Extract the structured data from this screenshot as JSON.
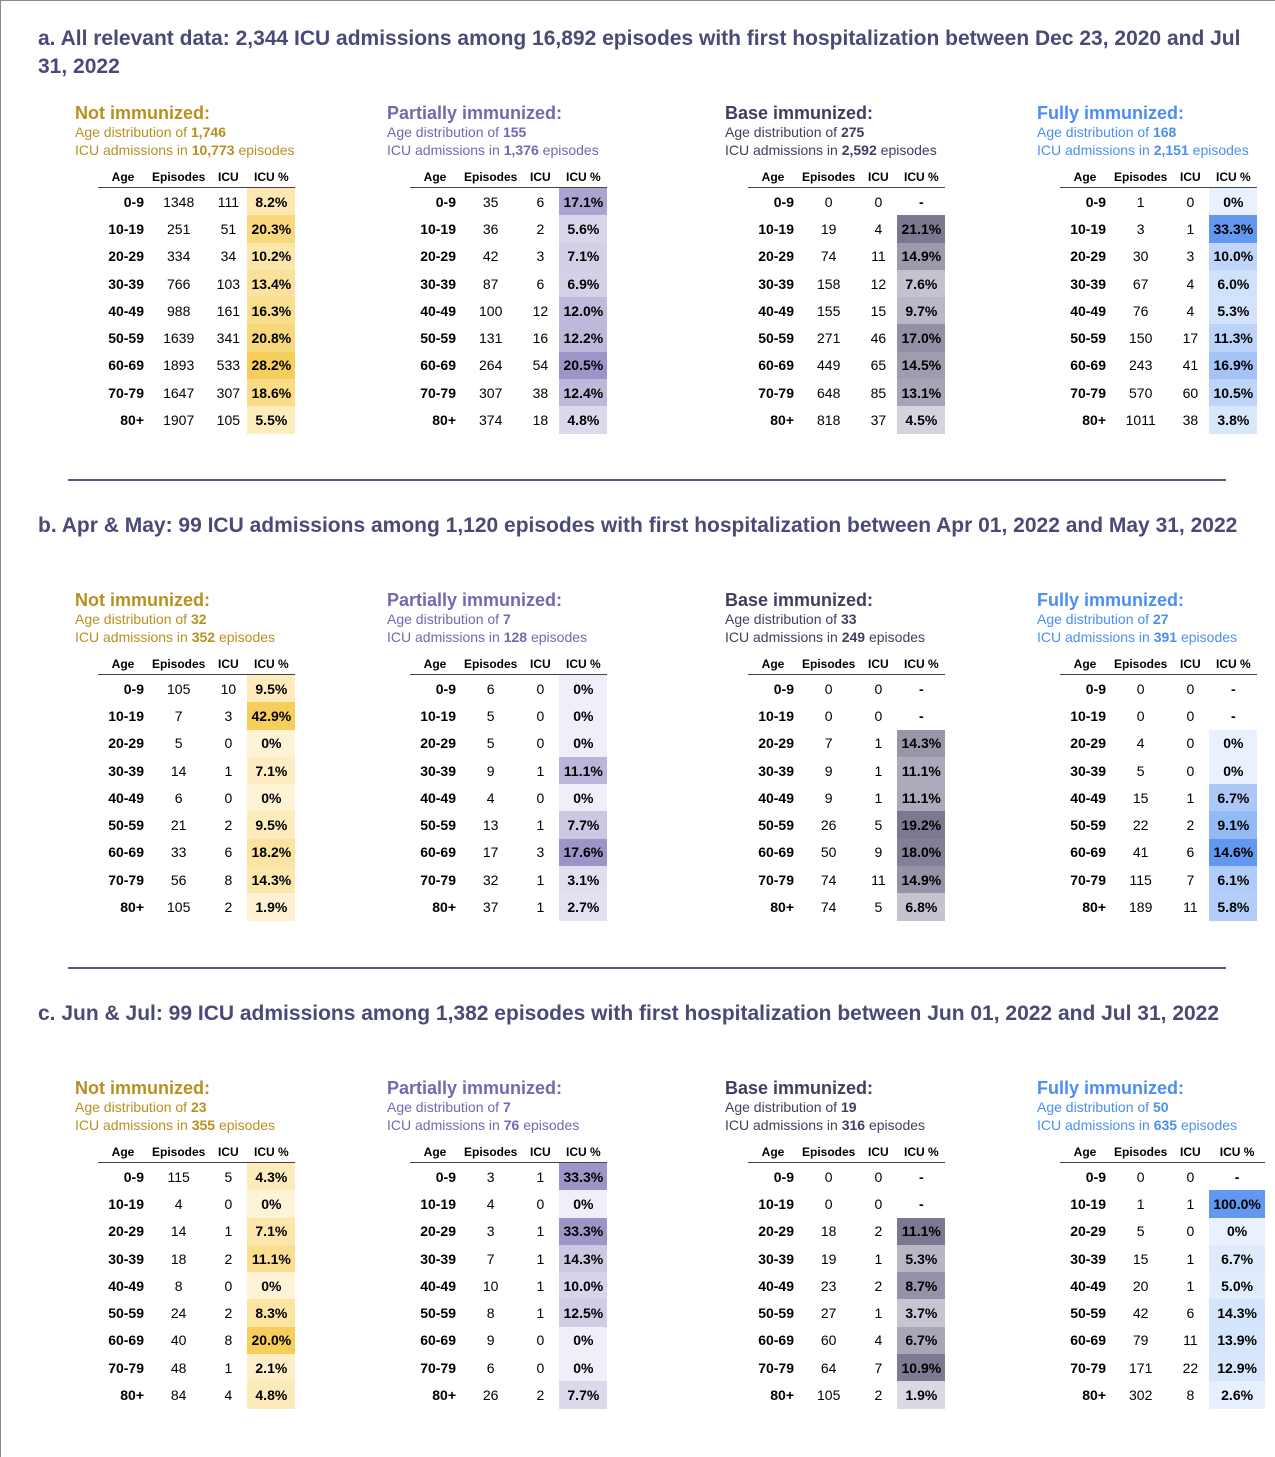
{
  "sections": [
    {
      "title": "a. All relevant data: 2,344 ICU admissions among 16,892 episodes with first hospitalization between Dec 23, 2020 and Jul 31, 2022",
      "groups": [
        {
          "heading": "Not immunized:",
          "dist_label": "Age distribution of",
          "icu_total": "1,746",
          "adm_label": "ICU admissions in",
          "episodes_total": "10,773",
          "episodes_word": "episodes",
          "columns": [
            "Age",
            "Episodes",
            "ICU",
            "ICU %"
          ],
          "rows": [
            [
              "0-9",
              "1348",
              "111",
              "8.2%"
            ],
            [
              "10-19",
              "251",
              "51",
              "20.3%"
            ],
            [
              "20-29",
              "334",
              "34",
              "10.2%"
            ],
            [
              "30-39",
              "766",
              "103",
              "13.4%"
            ],
            [
              "40-49",
              "988",
              "161",
              "16.3%"
            ],
            [
              "50-59",
              "1639",
              "341",
              "20.8%"
            ],
            [
              "60-69",
              "1893",
              "533",
              "28.2%"
            ],
            [
              "70-79",
              "1647",
              "307",
              "18.6%"
            ],
            [
              "80+",
              "1907",
              "105",
              "5.5%"
            ]
          ]
        },
        {
          "heading": "Partially immunized:",
          "dist_label": "Age distribution of",
          "icu_total": "155",
          "adm_label": "ICU admissions in",
          "episodes_total": "1,376",
          "episodes_word": "episodes",
          "columns": [
            "Age",
            "Episodes",
            "ICU",
            "ICU %"
          ],
          "rows": [
            [
              "0-9",
              "35",
              "6",
              "17.1%"
            ],
            [
              "10-19",
              "36",
              "2",
              "5.6%"
            ],
            [
              "20-29",
              "42",
              "3",
              "7.1%"
            ],
            [
              "30-39",
              "87",
              "6",
              "6.9%"
            ],
            [
              "40-49",
              "100",
              "12",
              "12.0%"
            ],
            [
              "50-59",
              "131",
              "16",
              "12.2%"
            ],
            [
              "60-69",
              "264",
              "54",
              "20.5%"
            ],
            [
              "70-79",
              "307",
              "38",
              "12.4%"
            ],
            [
              "80+",
              "374",
              "18",
              "4.8%"
            ]
          ]
        },
        {
          "heading": "Base immunized:",
          "dist_label": "Age distribution of",
          "icu_total": "275",
          "adm_label": "ICU admissions in",
          "episodes_total": "2,592",
          "episodes_word": "episodes",
          "columns": [
            "Age",
            "Episodes",
            "ICU",
            "ICU %"
          ],
          "rows": [
            [
              "0-9",
              "0",
              "0",
              "-"
            ],
            [
              "10-19",
              "19",
              "4",
              "21.1%"
            ],
            [
              "20-29",
              "74",
              "11",
              "14.9%"
            ],
            [
              "30-39",
              "158",
              "12",
              "7.6%"
            ],
            [
              "40-49",
              "155",
              "15",
              "9.7%"
            ],
            [
              "50-59",
              "271",
              "46",
              "17.0%"
            ],
            [
              "60-69",
              "449",
              "65",
              "14.5%"
            ],
            [
              "70-79",
              "648",
              "85",
              "13.1%"
            ],
            [
              "80+",
              "818",
              "37",
              "4.5%"
            ]
          ]
        },
        {
          "heading": "Fully immunized:",
          "dist_label": "Age distribution of",
          "icu_total": "168",
          "adm_label": "ICU admissions in",
          "episodes_total": "2,151",
          "episodes_word": "episodes",
          "columns": [
            "Age",
            "Episodes",
            "ICU",
            "ICU %"
          ],
          "rows": [
            [
              "0-9",
              "1",
              "0",
              "0%"
            ],
            [
              "10-19",
              "3",
              "1",
              "33.3%"
            ],
            [
              "20-29",
              "30",
              "3",
              "10.0%"
            ],
            [
              "30-39",
              "67",
              "4",
              "6.0%"
            ],
            [
              "40-49",
              "76",
              "4",
              "5.3%"
            ],
            [
              "50-59",
              "150",
              "17",
              "11.3%"
            ],
            [
              "60-69",
              "243",
              "41",
              "16.9%"
            ],
            [
              "70-79",
              "570",
              "60",
              "10.5%"
            ],
            [
              "80+",
              "1011",
              "38",
              "3.8%"
            ]
          ]
        }
      ]
    },
    {
      "title": "b. Apr & May: 99 ICU admissions among 1,120 episodes with first hospitalization between Apr 01, 2022 and May 31, 2022",
      "groups": [
        {
          "heading": "Not immunized:",
          "dist_label": "Age distribution of",
          "icu_total": "32",
          "adm_label": "ICU admissions in",
          "episodes_total": "352",
          "episodes_word": "episodes",
          "columns": [
            "Age",
            "Episodes",
            "ICU",
            "ICU %"
          ],
          "rows": [
            [
              "0-9",
              "105",
              "10",
              "9.5%"
            ],
            [
              "10-19",
              "7",
              "3",
              "42.9%"
            ],
            [
              "20-29",
              "5",
              "0",
              "0%"
            ],
            [
              "30-39",
              "14",
              "1",
              "7.1%"
            ],
            [
              "40-49",
              "6",
              "0",
              "0%"
            ],
            [
              "50-59",
              "21",
              "2",
              "9.5%"
            ],
            [
              "60-69",
              "33",
              "6",
              "18.2%"
            ],
            [
              "70-79",
              "56",
              "8",
              "14.3%"
            ],
            [
              "80+",
              "105",
              "2",
              "1.9%"
            ]
          ]
        },
        {
          "heading": "Partially immunized:",
          "dist_label": "Age distribution of",
          "icu_total": "7",
          "adm_label": "ICU admissions in",
          "episodes_total": "128",
          "episodes_word": "episodes",
          "columns": [
            "Age",
            "Episodes",
            "ICU",
            "ICU %"
          ],
          "rows": [
            [
              "0-9",
              "6",
              "0",
              "0%"
            ],
            [
              "10-19",
              "5",
              "0",
              "0%"
            ],
            [
              "20-29",
              "5",
              "0",
              "0%"
            ],
            [
              "30-39",
              "9",
              "1",
              "11.1%"
            ],
            [
              "40-49",
              "4",
              "0",
              "0%"
            ],
            [
              "50-59",
              "13",
              "1",
              "7.7%"
            ],
            [
              "60-69",
              "17",
              "3",
              "17.6%"
            ],
            [
              "70-79",
              "32",
              "1",
              "3.1%"
            ],
            [
              "80+",
              "37",
              "1",
              "2.7%"
            ]
          ]
        },
        {
          "heading": "Base immunized:",
          "dist_label": "Age distribution of",
          "icu_total": "33",
          "adm_label": "ICU admissions in",
          "episodes_total": "249",
          "episodes_word": "episodes",
          "columns": [
            "Age",
            "Episodes",
            "ICU",
            "ICU %"
          ],
          "rows": [
            [
              "0-9",
              "0",
              "0",
              "-"
            ],
            [
              "10-19",
              "0",
              "0",
              "-"
            ],
            [
              "20-29",
              "7",
              "1",
              "14.3%"
            ],
            [
              "30-39",
              "9",
              "1",
              "11.1%"
            ],
            [
              "40-49",
              "9",
              "1",
              "11.1%"
            ],
            [
              "50-59",
              "26",
              "5",
              "19.2%"
            ],
            [
              "60-69",
              "50",
              "9",
              "18.0%"
            ],
            [
              "70-79",
              "74",
              "11",
              "14.9%"
            ],
            [
              "80+",
              "74",
              "5",
              "6.8%"
            ]
          ]
        },
        {
          "heading": "Fully immunized:",
          "dist_label": "Age distribution of",
          "icu_total": "27",
          "adm_label": "ICU admissions in",
          "episodes_total": "391",
          "episodes_word": "episodes",
          "columns": [
            "Age",
            "Episodes",
            "ICU",
            "ICU %"
          ],
          "rows": [
            [
              "0-9",
              "0",
              "0",
              "-"
            ],
            [
              "10-19",
              "0",
              "0",
              "-"
            ],
            [
              "20-29",
              "4",
              "0",
              "0%"
            ],
            [
              "30-39",
              "5",
              "0",
              "0%"
            ],
            [
              "40-49",
              "15",
              "1",
              "6.7%"
            ],
            [
              "50-59",
              "22",
              "2",
              "9.1%"
            ],
            [
              "60-69",
              "41",
              "6",
              "14.6%"
            ],
            [
              "70-79",
              "115",
              "7",
              "6.1%"
            ],
            [
              "80+",
              "189",
              "11",
              "5.8%"
            ]
          ]
        }
      ]
    },
    {
      "title": "c. Jun & Jul: 99 ICU admissions among 1,382 episodes with first hospitalization between Jun 01, 2022 and Jul 31, 2022",
      "groups": [
        {
          "heading": "Not immunized:",
          "dist_label": "Age distribution of",
          "icu_total": "23",
          "adm_label": "ICU admissions in",
          "episodes_total": "355",
          "episodes_word": "episodes",
          "columns": [
            "Age",
            "Episodes",
            "ICU",
            "ICU %"
          ],
          "rows": [
            [
              "0-9",
              "115",
              "5",
              "4.3%"
            ],
            [
              "10-19",
              "4",
              "0",
              "0%"
            ],
            [
              "20-29",
              "14",
              "1",
              "7.1%"
            ],
            [
              "30-39",
              "18",
              "2",
              "11.1%"
            ],
            [
              "40-49",
              "8",
              "0",
              "0%"
            ],
            [
              "50-59",
              "24",
              "2",
              "8.3%"
            ],
            [
              "60-69",
              "40",
              "8",
              "20.0%"
            ],
            [
              "70-79",
              "48",
              "1",
              "2.1%"
            ],
            [
              "80+",
              "84",
              "4",
              "4.8%"
            ]
          ]
        },
        {
          "heading": "Partially immunized:",
          "dist_label": "Age distribution of",
          "icu_total": "7",
          "adm_label": "ICU admissions in",
          "episodes_total": "76",
          "episodes_word": "episodes",
          "columns": [
            "Age",
            "Episodes",
            "ICU",
            "ICU %"
          ],
          "rows": [
            [
              "0-9",
              "3",
              "1",
              "33.3%"
            ],
            [
              "10-19",
              "4",
              "0",
              "0%"
            ],
            [
              "20-29",
              "3",
              "1",
              "33.3%"
            ],
            [
              "30-39",
              "7",
              "1",
              "14.3%"
            ],
            [
              "40-49",
              "10",
              "1",
              "10.0%"
            ],
            [
              "50-59",
              "8",
              "1",
              "12.5%"
            ],
            [
              "60-69",
              "9",
              "0",
              "0%"
            ],
            [
              "70-79",
              "6",
              "0",
              "0%"
            ],
            [
              "80+",
              "26",
              "2",
              "7.7%"
            ]
          ]
        },
        {
          "heading": "Base immunized:",
          "dist_label": "Age distribution of",
          "icu_total": "19",
          "adm_label": "ICU admissions in",
          "episodes_total": "316",
          "episodes_word": "episodes",
          "columns": [
            "Age",
            "Episodes",
            "ICU",
            "ICU %"
          ],
          "rows": [
            [
              "0-9",
              "0",
              "0",
              "-"
            ],
            [
              "10-19",
              "0",
              "0",
              "-"
            ],
            [
              "20-29",
              "18",
              "2",
              "11.1%"
            ],
            [
              "30-39",
              "19",
              "1",
              "5.3%"
            ],
            [
              "40-49",
              "23",
              "2",
              "8.7%"
            ],
            [
              "50-59",
              "27",
              "1",
              "3.7%"
            ],
            [
              "60-69",
              "60",
              "4",
              "6.7%"
            ],
            [
              "70-79",
              "64",
              "7",
              "10.9%"
            ],
            [
              "80+",
              "105",
              "2",
              "1.9%"
            ]
          ]
        },
        {
          "heading": "Fully immunized:",
          "dist_label": "Age distribution of",
          "icu_total": "50",
          "adm_label": "ICU admissions in",
          "episodes_total": "635",
          "episodes_word": "episodes",
          "columns": [
            "Age",
            "Episodes",
            "ICU",
            "ICU %"
          ],
          "rows": [
            [
              "0-9",
              "0",
              "0",
              "-"
            ],
            [
              "10-19",
              "1",
              "1",
              "100.0%"
            ],
            [
              "20-29",
              "5",
              "0",
              "0%"
            ],
            [
              "30-39",
              "15",
              "1",
              "6.7%"
            ],
            [
              "40-49",
              "20",
              "1",
              "5.0%"
            ],
            [
              "50-59",
              "42",
              "6",
              "14.3%"
            ],
            [
              "60-69",
              "79",
              "11",
              "13.9%"
            ],
            [
              "70-79",
              "171",
              "22",
              "12.9%"
            ],
            [
              "80+",
              "302",
              "8",
              "2.6%"
            ]
          ]
        }
      ]
    }
  ]
}
